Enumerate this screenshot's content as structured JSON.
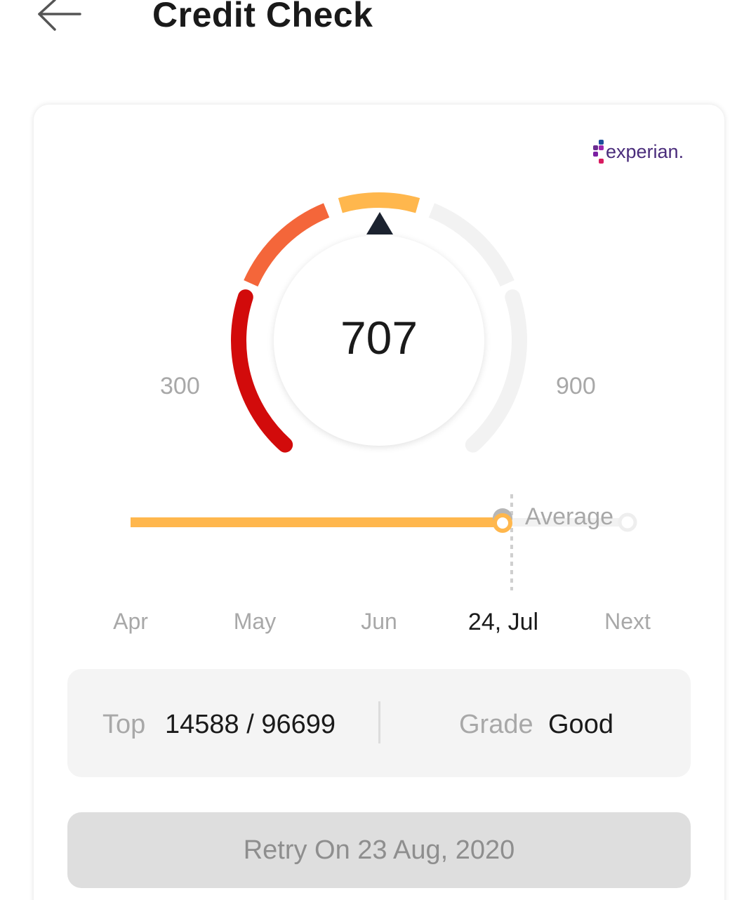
{
  "header": {
    "title": "Credit Check"
  },
  "brand": {
    "name": "experian."
  },
  "gauge": {
    "score": "707",
    "min_label": "300",
    "max_label": "900",
    "score_value": 707,
    "range": [
      300,
      900
    ],
    "segment_colors": [
      "#d20b0b",
      "#f4663a",
      "#ffb74d",
      "#f2f2f2",
      "#f2f2f2"
    ]
  },
  "history": {
    "average_label": "Average",
    "line_color": "#ffb74d",
    "months": [
      {
        "label": "Apr",
        "active": false
      },
      {
        "label": "May",
        "active": false
      },
      {
        "label": "Jun",
        "active": false
      },
      {
        "label": "24, Jul",
        "active": true
      },
      {
        "label": "Next",
        "active": false
      }
    ]
  },
  "stats": {
    "top_label": "Top",
    "top_value": "14588 / 96699",
    "grade_label": "Grade",
    "grade_value": "Good"
  },
  "retry_button": {
    "label": "Retry On 23 Aug, 2020"
  }
}
